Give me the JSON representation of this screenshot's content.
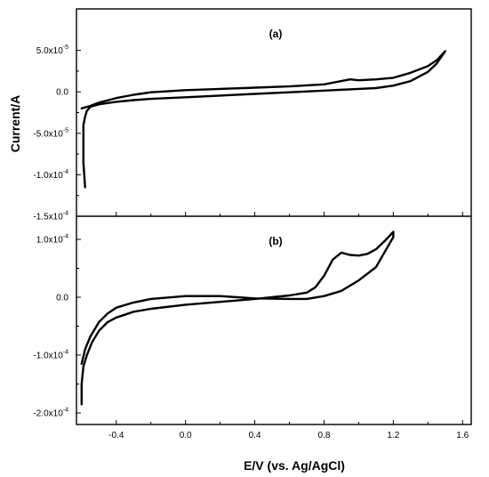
{
  "chart_data": [
    {
      "type": "line",
      "panel_label": "(a)",
      "ylabel": "Current/A",
      "xlim": [
        -0.63,
        1.65
      ],
      "ylim": [
        -0.00015,
        0.0001
      ],
      "y_ticks": [
        {
          "value": 5e-05,
          "label": "5.0x10",
          "exp": "-5"
        },
        {
          "value": 0,
          "label": "0.0",
          "exp": ""
        },
        {
          "value": -5e-05,
          "label": "-5.0x10",
          "exp": "-5"
        },
        {
          "value": -0.0001,
          "label": "-1.0x10",
          "exp": "-4"
        },
        {
          "value": -0.00015,
          "label": "-1.5x10",
          "exp": "-4"
        }
      ],
      "series": [
        {
          "x": [
            -0.58,
            -0.59,
            -0.59,
            -0.58,
            -0.57,
            -0.55,
            -0.5,
            -0.4,
            -0.3,
            -0.2,
            0.0,
            0.2,
            0.4,
            0.6,
            0.8,
            1.0,
            1.1,
            1.2,
            1.3,
            1.4,
            1.45,
            1.5,
            1.45,
            1.4,
            1.3,
            1.2,
            1.1,
            1.0,
            0.95,
            0.9,
            0.8,
            0.6,
            0.4,
            0.2,
            0.0,
            -0.2,
            -0.3,
            -0.4,
            -0.5,
            -0.55,
            -0.6
          ],
          "y": [
            -0.000115,
            -8.5e-05,
            -4e-05,
            -3e-05,
            -2.3e-05,
            -1.8e-05,
            -1.5e-05,
            -1.2e-05,
            -1e-05,
            -8.5e-06,
            -6.5e-06,
            -4.5e-06,
            -2.5e-06,
            -5e-07,
            1.5e-06,
            3.5e-06,
            4.5e-06,
            7.5e-06,
            1.3e-05,
            2.4e-05,
            3.4e-05,
            4.9e-05,
            3.8e-05,
            3.1e-05,
            2.3e-05,
            1.7e-05,
            1.5e-05,
            1.4e-05,
            1.5e-05,
            1.3e-05,
            9e-06,
            6.5e-06,
            5e-06,
            3.5e-06,
            2e-06,
            -5e-07,
            -3.5e-06,
            -7.5e-06,
            -1.3e-05,
            -1.7e-05,
            -2e-05
          ]
        }
      ]
    },
    {
      "type": "line",
      "panel_label": "(b)",
      "xlabel": "E/V (vs. Ag/AgCl)",
      "xlim": [
        -0.63,
        1.65
      ],
      "ylim": [
        -0.00022,
        0.00014
      ],
      "x_ticks": [
        -0.4,
        0.0,
        0.4,
        0.8,
        1.2,
        1.6
      ],
      "x_tick_labels": [
        "-0.4",
        "0.0",
        "0.4",
        "0.8",
        "1.2",
        "1.6"
      ],
      "y_ticks": [
        {
          "value": 0.0001,
          "label": "1.0x10",
          "exp": "-4"
        },
        {
          "value": 0,
          "label": "0.0",
          "exp": ""
        },
        {
          "value": -0.0001,
          "label": "-1.0x10",
          "exp": "-4"
        },
        {
          "value": -0.0002,
          "label": "-2.0x10",
          "exp": "-4"
        }
      ],
      "series": [
        {
          "x": [
            -0.6,
            -0.6,
            -0.59,
            -0.57,
            -0.54,
            -0.5,
            -0.45,
            -0.4,
            -0.3,
            -0.2,
            0.0,
            0.2,
            0.4,
            0.6,
            0.7,
            0.75,
            0.8,
            0.85,
            0.9,
            0.95,
            1.0,
            1.05,
            1.1,
            1.15,
            1.2,
            1.2,
            1.15,
            1.1,
            1.0,
            0.9,
            0.8,
            0.7,
            0.6,
            0.4,
            0.2,
            0.0,
            -0.2,
            -0.3,
            -0.4,
            -0.45,
            -0.5,
            -0.55,
            -0.58,
            -0.6
          ],
          "y": [
            -0.000185,
            -0.00015,
            -0.00012,
            -0.0001,
            -7.8e-05,
            -5.8e-05,
            -4.3e-05,
            -3.5e-05,
            -2.5e-05,
            -2e-05,
            -1.3e-05,
            -8e-06,
            -3e-06,
            3e-06,
            8e-06,
            1.7e-05,
            3.7e-05,
            6.5e-05,
            7.7e-05,
            7.3e-05,
            7.2e-05,
            7.5e-05,
            8.3e-05,
            9.7e-05,
            0.000113,
            0.000104,
            7.8e-05,
            5.2e-05,
            2.9e-05,
            1.1e-05,
            2e-06,
            -3e-06,
            -3e-06,
            -2e-06,
            2e-06,
            2e-06,
            -3e-06,
            -9e-06,
            -1.8e-05,
            -2.8e-05,
            -4.3e-05,
            -6.8e-05,
            -9e-05,
            -0.000115
          ]
        }
      ]
    }
  ]
}
